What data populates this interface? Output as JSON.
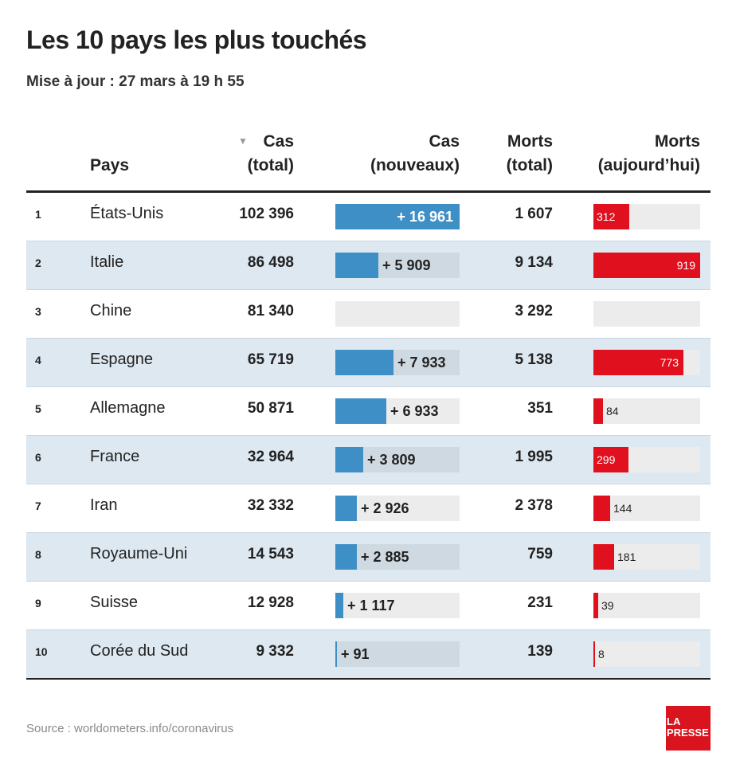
{
  "title": "Les 10 pays les plus touchés",
  "subtitle": "Mise à jour : 27 mars à 19 h 55",
  "headers": {
    "country": "Pays",
    "total_cases_line1": "Cas",
    "total_cases_line2": "(total)",
    "new_cases_line1": "Cas",
    "new_cases_line2": "(nouveaux)",
    "total_deaths_line1": "Morts",
    "total_deaths_line2": "(total)",
    "new_deaths_line1": "Morts",
    "new_deaths_line2": "(aujourd’hui)",
    "sort_icon": "triangle-down-icon"
  },
  "colors": {
    "new_cases_bar": "#3f8fc7",
    "new_deaths_bar": "#e0101e",
    "row_shade": "#dde8f0",
    "logo": "#d9141f"
  },
  "scales": {
    "new_cases_max": 16961,
    "new_deaths_max": 919
  },
  "chart_data": {
    "type": "table",
    "title": "Les 10 pays les plus touchés",
    "subtitle": "Mise à jour : 27 mars à 19 h 55",
    "columns": [
      "",
      "Pays",
      "Cas (total)",
      "Cas (nouveaux)",
      "Morts (total)",
      "Morts (aujourd’hui)"
    ],
    "rows": [
      {
        "rank": "1",
        "country": "États-Unis",
        "total_cases": "102 396",
        "new_cases": 16961,
        "new_cases_label": "+ 16 961",
        "total_deaths": "1 607",
        "new_deaths": 312,
        "new_deaths_label": "312"
      },
      {
        "rank": "2",
        "country": "Italie",
        "total_cases": "86 498",
        "new_cases": 5909,
        "new_cases_label": "+ 5 909",
        "total_deaths": "9 134",
        "new_deaths": 919,
        "new_deaths_label": "919"
      },
      {
        "rank": "3",
        "country": "Chine",
        "total_cases": "81 340",
        "new_cases": 0,
        "new_cases_label": "",
        "total_deaths": "3 292",
        "new_deaths": 0,
        "new_deaths_label": ""
      },
      {
        "rank": "4",
        "country": "Espagne",
        "total_cases": "65 719",
        "new_cases": 7933,
        "new_cases_label": "+ 7 933",
        "total_deaths": "5 138",
        "new_deaths": 773,
        "new_deaths_label": "773"
      },
      {
        "rank": "5",
        "country": "Allemagne",
        "total_cases": "50 871",
        "new_cases": 6933,
        "new_cases_label": "+ 6 933",
        "total_deaths": "351",
        "new_deaths": 84,
        "new_deaths_label": "84"
      },
      {
        "rank": "6",
        "country": "France",
        "total_cases": "32 964",
        "new_cases": 3809,
        "new_cases_label": "+ 3 809",
        "total_deaths": "1 995",
        "new_deaths": 299,
        "new_deaths_label": "299"
      },
      {
        "rank": "7",
        "country": "Iran",
        "total_cases": "32 332",
        "new_cases": 2926,
        "new_cases_label": "+ 2 926",
        "total_deaths": "2 378",
        "new_deaths": 144,
        "new_deaths_label": "144"
      },
      {
        "rank": "8",
        "country": "Royaume-Uni",
        "total_cases": "14 543",
        "new_cases": 2885,
        "new_cases_label": "+ 2 885",
        "total_deaths": "759",
        "new_deaths": 181,
        "new_deaths_label": "181"
      },
      {
        "rank": "9",
        "country": "Suisse",
        "total_cases": "12 928",
        "new_cases": 1117,
        "new_cases_label": "+ 1 117",
        "total_deaths": "231",
        "new_deaths": 39,
        "new_deaths_label": "39"
      },
      {
        "rank": "10",
        "country": "Corée du Sud",
        "total_cases": "9 332",
        "new_cases": 91,
        "new_cases_label": "+ 91",
        "total_deaths": "139",
        "new_deaths": 8,
        "new_deaths_label": "8"
      }
    ]
  },
  "source": "Source : worldometers.info/coronavirus",
  "logo": {
    "line1": "LA",
    "line2": "PRESSE"
  }
}
